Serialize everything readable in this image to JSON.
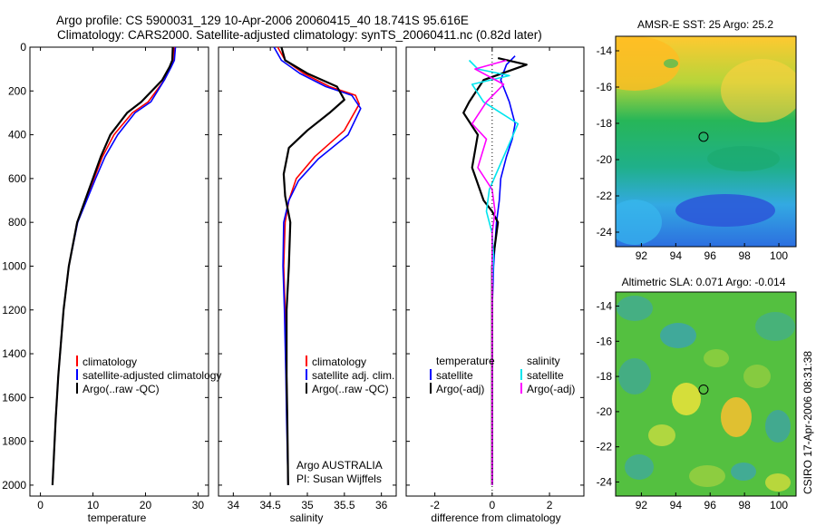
{
  "title_line1": "Argo profile: CS 5900031_129 10-Apr-2006 20060415_40 18.741S 95.616E",
  "title_line2": "Climatology: CARS2000. Satellite-adjusted climatology: synTS_20060411.nc (0.82d later)",
  "side_label": "CSIRO 17-Apr-2006 08:31:38",
  "chart_data": [
    {
      "type": "line",
      "panel": "temperature",
      "xlabel": "temperature",
      "ylabel": "",
      "xlim": [
        -2,
        32
      ],
      "ylim": [
        2050,
        0
      ],
      "y_reversed": true,
      "xticks": [
        0,
        10,
        20,
        30
      ],
      "yticks": [
        0,
        200,
        400,
        600,
        800,
        1000,
        1200,
        1400,
        1600,
        1800,
        2000
      ],
      "legend_position": "lower-center",
      "series": [
        {
          "name": "climatology",
          "color": "#ff0000",
          "x": [
            25.5,
            25.4,
            24.8,
            23.6,
            20.5,
            17.5,
            14.0,
            11.8,
            10.2,
            8.6,
            7.0,
            5.4,
            4.4,
            3.4,
            2.9,
            2.3
          ],
          "y": [
            0,
            60,
            90,
            150,
            250,
            300,
            400,
            500,
            600,
            700,
            800,
            1000,
            1200,
            1500,
            1700,
            2000
          ]
        },
        {
          "name": "satellite-adjusted climatology",
          "color": "#0000ff",
          "x": [
            25.7,
            25.5,
            24.9,
            23.6,
            21.0,
            18.0,
            14.7,
            12.3,
            10.5,
            8.8,
            7.1,
            5.4,
            4.4,
            3.4,
            2.9,
            2.3
          ],
          "y": [
            0,
            60,
            90,
            150,
            250,
            300,
            400,
            500,
            600,
            700,
            800,
            1000,
            1200,
            1500,
            1700,
            2000
          ]
        },
        {
          "name": "Argo(..raw -QC)",
          "color": "#000000",
          "x": [
            25.2,
            25.1,
            24.6,
            23.2,
            19.2,
            16.5,
            13.3,
            11.5,
            10.0,
            8.5,
            7.0,
            5.4,
            4.4,
            3.4,
            2.9,
            2.3
          ],
          "y": [
            0,
            60,
            90,
            150,
            250,
            300,
            400,
            500,
            600,
            700,
            800,
            1000,
            1200,
            1500,
            1700,
            2000
          ]
        }
      ]
    },
    {
      "type": "line",
      "panel": "salinity",
      "xlabel": "salinity",
      "ylabel": "",
      "xlim": [
        33.8,
        36.2
      ],
      "ylim": [
        2050,
        0
      ],
      "y_reversed": true,
      "xticks": [
        34,
        34.5,
        35,
        35.5,
        36
      ],
      "legend_position": "lower-center",
      "annotation_line1": "Argo AUSTRALIA",
      "annotation_line2": "PI: Susan Wijffels",
      "series": [
        {
          "name": "climatology",
          "color": "#ff0000",
          "x": [
            34.6,
            34.7,
            34.95,
            35.3,
            35.65,
            35.7,
            35.5,
            35.1,
            34.85,
            34.75,
            34.7,
            34.68,
            34.7,
            34.72,
            34.73,
            34.74
          ],
          "y": [
            0,
            60,
            120,
            180,
            220,
            260,
            380,
            500,
            600,
            700,
            800,
            1000,
            1200,
            1500,
            1700,
            2000
          ]
        },
        {
          "name": "satellite adj. clim.",
          "color": "#0000ff",
          "x": [
            34.55,
            34.65,
            34.9,
            35.25,
            35.6,
            35.72,
            35.55,
            35.15,
            34.88,
            34.75,
            34.68,
            34.67,
            34.69,
            34.71,
            34.72,
            34.74
          ],
          "y": [
            0,
            60,
            120,
            180,
            220,
            280,
            400,
            510,
            610,
            700,
            800,
            1000,
            1200,
            1500,
            1700,
            2000
          ]
        },
        {
          "name": "Argo(..raw -QC)",
          "color": "#000000",
          "x": [
            34.65,
            34.7,
            35.0,
            35.4,
            35.5,
            35.3,
            35.0,
            34.75,
            34.68,
            34.7,
            34.77,
            34.75,
            34.72,
            34.72,
            34.73,
            34.74
          ],
          "y": [
            0,
            60,
            120,
            180,
            240,
            300,
            380,
            460,
            580,
            680,
            800,
            1000,
            1200,
            1500,
            1700,
            2000
          ]
        }
      ]
    },
    {
      "type": "line",
      "panel": "difference",
      "xlabel": "difference from climatology",
      "ylabel": "",
      "xlim": [
        -3,
        3.2
      ],
      "ylim": [
        2050,
        0
      ],
      "y_reversed": true,
      "xticks": [
        -2,
        0,
        2
      ],
      "legend_position": "lower-center",
      "legend_temperature_heading": "temperature",
      "legend_salinity_heading": "salinity",
      "series": [
        {
          "name": "satellite",
          "group": "temperature",
          "color": "#0000ff",
          "x": [
            0.8,
            0.5,
            0.3,
            0.6,
            0.8,
            0.7,
            0.5,
            0.3,
            0.25,
            0.15,
            0.1,
            0.05,
            0.0,
            0.0,
            0.0,
            0.0
          ],
          "y": [
            40,
            80,
            150,
            250,
            350,
            420,
            500,
            600,
            700,
            800,
            900,
            1000,
            1200,
            1500,
            1800,
            2000
          ]
        },
        {
          "name": "Argo(-adj)",
          "group": "temperature",
          "color": "#000000",
          "x": [
            0.2,
            1.2,
            -0.3,
            -0.8,
            -1.0,
            -0.5,
            -0.7,
            -0.3,
            0.0,
            0.2,
            0.1,
            0.0,
            0.0,
            0.0,
            0.0,
            0.0
          ],
          "y": [
            50,
            80,
            150,
            250,
            300,
            400,
            550,
            700,
            750,
            800,
            900,
            1000,
            1200,
            1500,
            1800,
            2000
          ]
        },
        {
          "name": "satellite",
          "group": "salinity",
          "color": "#00e5ee",
          "x": [
            -0.8,
            -0.5,
            0.6,
            -0.7,
            -0.3,
            0.9,
            0.4,
            -0.1,
            -0.2,
            0.0,
            0.05,
            0.0,
            0.0,
            0.0,
            0.0,
            0.0
          ],
          "y": [
            60,
            100,
            130,
            170,
            250,
            350,
            500,
            650,
            750,
            850,
            950,
            1100,
            1300,
            1500,
            1800,
            2000
          ]
        },
        {
          "name": "Argo(-adj)",
          "group": "salinity",
          "color": "#ff00ff",
          "x": [
            0.5,
            -0.6,
            0.4,
            -0.2,
            -0.7,
            -0.2,
            -0.5,
            0.0,
            0.1,
            0.0,
            0.0,
            0.0,
            0.0,
            0.0,
            0.0,
            0.0
          ],
          "y": [
            60,
            100,
            170,
            250,
            350,
            420,
            550,
            650,
            750,
            850,
            950,
            1100,
            1300,
            1500,
            1800,
            2000
          ]
        }
      ]
    },
    {
      "type": "heatmap",
      "panel": "sst_map",
      "title": "AMSR-E SST: 25 Argo: 25.2",
      "xlim": [
        90.5,
        101
      ],
      "ylim": [
        -24.8,
        -13.2
      ],
      "xticks": [
        92,
        94,
        96,
        98,
        100
      ],
      "yticks": [
        -14,
        -16,
        -18,
        -20,
        -22,
        -24
      ],
      "marker": {
        "lon": 95.616,
        "lat": -18.741
      }
    },
    {
      "type": "heatmap",
      "panel": "sla_map",
      "title": "Altimetric SLA: 0.071 Argo: -0.014",
      "xlim": [
        90.5,
        101
      ],
      "ylim": [
        -24.8,
        -13.2
      ],
      "xticks": [
        92,
        94,
        96,
        98,
        100
      ],
      "yticks": [
        -14,
        -16,
        -18,
        -20,
        -22,
        -24
      ],
      "marker": {
        "lon": 95.616,
        "lat": -18.741
      }
    }
  ]
}
